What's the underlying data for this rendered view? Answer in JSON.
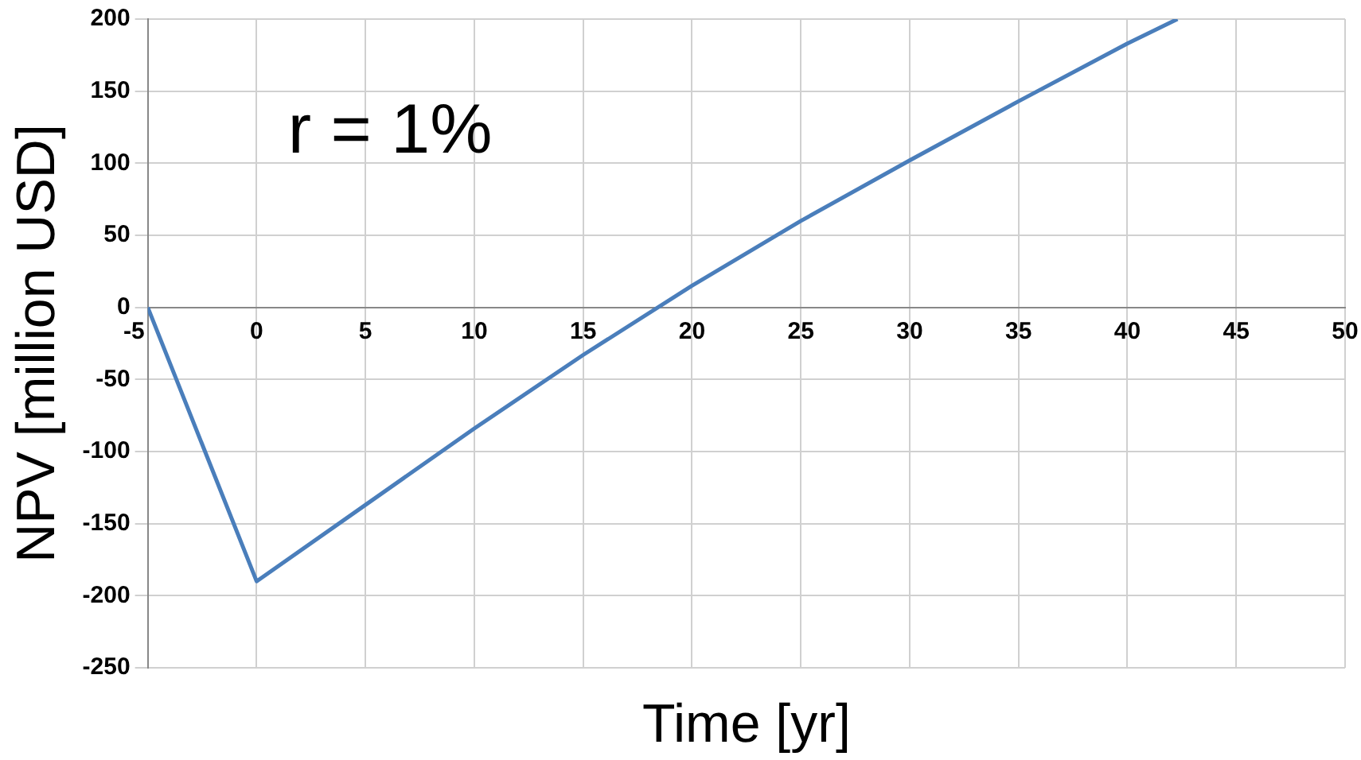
{
  "chart_data": {
    "type": "line",
    "xlabel": "Time [yr]",
    "ylabel": "NPV [million USD]",
    "annotations": [
      "r = 1%"
    ],
    "series": [
      {
        "color": "#4a7ebb",
        "x": [
          -5,
          0,
          5,
          10,
          15,
          20,
          25,
          30,
          35,
          40,
          42.3
        ],
        "values": [
          0,
          -190,
          -137,
          -84,
          -33,
          15,
          60,
          102,
          143,
          183,
          200
        ]
      }
    ],
    "xlim": [
      -5,
      50
    ],
    "xticks": [
      -5,
      0,
      5,
      10,
      15,
      20,
      25,
      30,
      35,
      40,
      45,
      50
    ],
    "ylim": [
      -250,
      200
    ],
    "yticks": [
      -250,
      -200,
      -150,
      -100,
      -50,
      0,
      50,
      100,
      150,
      200
    ],
    "grid": true,
    "legend": false,
    "marker": "none",
    "line_style": "solid"
  }
}
